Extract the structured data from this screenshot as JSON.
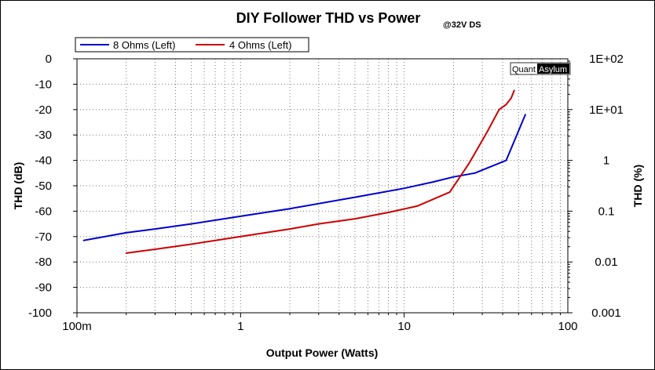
{
  "chart_data": {
    "type": "line",
    "title": "DIY Follower THD vs Power",
    "subtitle": "@32V DS",
    "xlabel": "Output Power (Watts)",
    "ylabel": "THD (dB)",
    "y2label": "THD (%)",
    "xscale": "log",
    "xlim": [
      0.1,
      100
    ],
    "ylim": [
      -100,
      0
    ],
    "y2scale": "log",
    "y2lim": [
      0.001,
      100
    ],
    "grid": true,
    "legend": "top-left",
    "x_ticks": [
      {
        "value": 0.1,
        "label": "100m"
      },
      {
        "value": 1,
        "label": "1"
      },
      {
        "value": 10,
        "label": "10"
      },
      {
        "value": 100,
        "label": "100"
      }
    ],
    "y_ticks": [
      {
        "value": 0,
        "label": "0"
      },
      {
        "value": -10,
        "label": "-10"
      },
      {
        "value": -20,
        "label": "-20"
      },
      {
        "value": -30,
        "label": "-30"
      },
      {
        "value": -40,
        "label": "-40"
      },
      {
        "value": -50,
        "label": "-50"
      },
      {
        "value": -60,
        "label": "-60"
      },
      {
        "value": -70,
        "label": "-70"
      },
      {
        "value": -80,
        "label": "-80"
      },
      {
        "value": -90,
        "label": "-90"
      },
      {
        "value": -100,
        "label": "-100"
      }
    ],
    "y2_ticks": [
      {
        "value": 100,
        "label": "1E+02"
      },
      {
        "value": 10,
        "label": "1E+01"
      },
      {
        "value": 1,
        "label": "1"
      },
      {
        "value": 0.1,
        "label": "0.1"
      },
      {
        "value": 0.01,
        "label": "0.01"
      },
      {
        "value": 0.001,
        "label": "0.001"
      }
    ],
    "series": [
      {
        "name": "8 Ohms (Left)",
        "color": "#0000cc",
        "x": [
          0.11,
          0.2,
          0.3,
          0.5,
          1,
          2,
          5,
          10,
          15,
          20,
          27,
          42,
          55
        ],
        "y": [
          -71.5,
          -68.5,
          -67,
          -65,
          -62,
          -59,
          -54.5,
          -51,
          -48.5,
          -46.5,
          -45,
          -40,
          -22
        ]
      },
      {
        "name": "4 Ohms (Left)",
        "color": "#cc0000",
        "x": [
          0.2,
          0.3,
          0.5,
          1,
          2,
          3,
          5,
          8,
          12,
          19,
          25,
          32,
          38,
          42,
          45,
          47
        ],
        "y": [
          -76.5,
          -75,
          -73,
          -70,
          -67,
          -65,
          -63,
          -60.5,
          -58,
          -52.5,
          -41,
          -29,
          -20,
          -18,
          -15.5,
          -12.5
        ]
      }
    ]
  },
  "watermark": {
    "part1": "Quant",
    "part2": "Asylum"
  }
}
